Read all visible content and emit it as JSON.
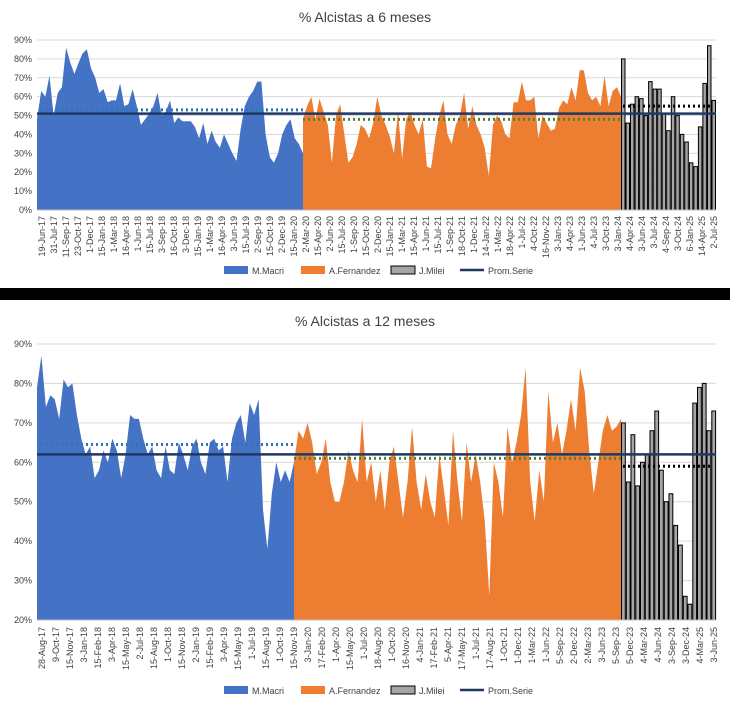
{
  "colors": {
    "macri": "#4472c4",
    "fernandez": "#ed7d31",
    "milei_fill": "#a5a5a5",
    "milei_stroke": "#000000",
    "prom": "#1f3864",
    "macri_dot": "#2e75b6",
    "fernandez_dot": "#548235",
    "milei_dot": "#000000"
  },
  "chart_data": [
    {
      "type": "area",
      "title": "% Alcistas a 6 meses",
      "ylim": [
        0,
        90
      ],
      "yticks": [
        "0%",
        "10%",
        "20%",
        "30%",
        "40%",
        "50%",
        "60%",
        "70%",
        "80%",
        "90%"
      ],
      "xticks": [
        "19-Jun-17",
        "31-Jul-17",
        "11-Sep-17",
        "23-Oct-17",
        "1-Dec-17",
        "15-Jan-18",
        "1-Mar-18",
        "16-Apr-18",
        "1-Jun-18",
        "15-Jul-18",
        "3-Sep-18",
        "16-Oct-18",
        "3-Dec-18",
        "15-Jan-19",
        "1-Mar-19",
        "16-Apr-19",
        "3-Jun-19",
        "15-Jul-19",
        "2-Sep-19",
        "15-Oct-19",
        "2-Dec-19",
        "15-Jan-20",
        "2-Mar-20",
        "15-Apr-20",
        "2-Jun-20",
        "15-Jul-20",
        "1-Sep-20",
        "15-Oct-20",
        "2-Dec-20",
        "15-Jan-21",
        "1-Mar-21",
        "15-Apr-21",
        "1-Jun-21",
        "15-Jul-21",
        "1-Sep-21",
        "18-Oct-21",
        "1-Dec-21",
        "14-Jan-22",
        "1-Mar-22",
        "18-Apr-22",
        "1-Jul-22",
        "4-Oct-22",
        "16-Nov-22",
        "3-Jan-23",
        "4-Apr-23",
        "1-Jun-23",
        "4-Jul-23",
        "3-Oct-23",
        "3-Jan-24",
        "4-Apr-24",
        "3-Jun-24",
        "3-Jul-24",
        "4-Sep-24",
        "3-Oct-24",
        "6-Jan-25",
        "14-Apr-25",
        "2-Jul-25"
      ],
      "legend": [
        "M.Macri",
        "A.Fernandez",
        "J.Milei",
        "Prom.Serie"
      ],
      "prom_serie": 51,
      "period_avgs": {
        "M.Macri": 53,
        "A.Fernandez": 48,
        "J.Milei": 55
      },
      "series": [
        {
          "name": "M.Macri",
          "values": [
            48,
            63,
            60,
            71,
            50,
            62,
            65,
            86,
            78,
            72,
            78,
            83,
            85,
            75,
            70,
            62,
            64,
            57,
            58,
            58,
            67,
            55,
            56,
            64,
            55,
            45,
            48,
            51,
            55,
            62,
            50,
            52,
            58,
            46,
            49,
            47,
            47,
            47,
            44,
            38,
            46,
            35,
            42,
            36,
            33,
            40,
            35,
            30,
            26,
            43,
            55,
            60,
            63,
            68,
            68,
            40,
            28,
            25,
            30,
            40,
            45,
            48,
            38,
            35,
            30
          ]
        },
        {
          "name": "A.Fernandez",
          "values": [
            48,
            55,
            60,
            48,
            59,
            52,
            45,
            25,
            50,
            56,
            40,
            25,
            28,
            35,
            45,
            43,
            38,
            46,
            60,
            50,
            45,
            39,
            30,
            52,
            27,
            48,
            52,
            45,
            40,
            48,
            23,
            22,
            38,
            50,
            58,
            40,
            35,
            45,
            50,
            62,
            43,
            55,
            45,
            40,
            33,
            18,
            45,
            50,
            47,
            40,
            38,
            57,
            57,
            68,
            58,
            58,
            60,
            38,
            50,
            46,
            42,
            43,
            54,
            58,
            56,
            65,
            58,
            74,
            74,
            62,
            58,
            60,
            55,
            71,
            55,
            63,
            65,
            60
          ]
        },
        {
          "name": "J.Milei",
          "values": [
            80,
            46,
            56,
            60,
            59,
            50,
            68,
            64,
            64,
            51,
            42,
            60,
            50,
            40,
            36,
            25,
            23,
            44,
            67,
            87,
            58
          ]
        }
      ]
    },
    {
      "type": "area",
      "title": "% Alcistas a 12 meses",
      "ylim": [
        20,
        90
      ],
      "yticks": [
        "20%",
        "30%",
        "40%",
        "50%",
        "60%",
        "70%",
        "80%",
        "90%"
      ],
      "xticks": [
        "28-Aug-17",
        "9-Oct-17",
        "15-Nov-17",
        "3-Jan-18",
        "15-Feb-18",
        "3-Apr-18",
        "15-May-18",
        "2-Jul-18",
        "15-Aug-18",
        "1-Oct-18",
        "15-Nov-18",
        "2-Jan-19",
        "15-Feb-19",
        "3-Apr-19",
        "15-May-19",
        "1-Jul-19",
        "15-Aug-19",
        "1-Oct-19",
        "15-Nov-19",
        "3-Jan-20",
        "17-Feb-20",
        "1-Apr-20",
        "15-May-20",
        "1-Jul-20",
        "18-Aug-20",
        "1-Oct-20",
        "16-Nov-20",
        "4-Jan-21",
        "17-Feb-21",
        "5-Apr-21",
        "17-May-21",
        "1-Jul-21",
        "17-Aug-21",
        "1-Oct-21",
        "1-Dec-21",
        "1-Mar-22",
        "1-Jun-22",
        "5-Sep-22",
        "2-Dec-22",
        "2-Mar-23",
        "3-Jun-23",
        "5-Sep-23",
        "5-Dec-23",
        "4-Mar-24",
        "4-Jun-24",
        "3-Sep-24",
        "3-Dec-24",
        "4-Mar-25",
        "3-Jun-25"
      ],
      "legend": [
        "M.Macri",
        "A.Fernandez",
        "J.Milei",
        "Prom.Serie"
      ],
      "prom_serie": 62,
      "period_avgs": {
        "M.Macri": 64.5,
        "A.Fernandez": 61,
        "J.Milei": 59
      },
      "series": [
        {
          "name": "M.Macri",
          "values": [
            79,
            87,
            74,
            77,
            76,
            71,
            81,
            79,
            80,
            72,
            66,
            62,
            64,
            56,
            58,
            63,
            60,
            66,
            63,
            56,
            62,
            72,
            71,
            71,
            66,
            62,
            64,
            58,
            56,
            64,
            58,
            57,
            65,
            62,
            58,
            64,
            66,
            60,
            57,
            65,
            66,
            63,
            64,
            55,
            66,
            70,
            72,
            65,
            75,
            72,
            76,
            48,
            38,
            52,
            60,
            55,
            58,
            55,
            60
          ]
        },
        {
          "name": "A.Fernandez",
          "values": [
            60,
            68,
            66,
            70,
            65,
            57,
            60,
            66,
            55,
            50,
            50,
            55,
            63,
            58,
            55,
            71,
            55,
            60,
            50,
            58,
            48,
            60,
            64,
            55,
            46,
            55,
            69,
            55,
            48,
            57,
            50,
            46,
            62,
            53,
            44,
            68,
            55,
            45,
            65,
            55,
            62,
            55,
            45,
            26,
            60,
            55,
            46,
            69,
            60,
            65,
            72,
            84,
            55,
            45,
            58,
            50,
            78,
            65,
            70,
            62,
            68,
            76,
            68,
            84,
            78,
            63,
            52,
            60,
            68,
            72,
            68,
            69,
            71
          ]
        },
        {
          "name": "J.Milei",
          "values": [
            70,
            55,
            67,
            54,
            60,
            62,
            68,
            73,
            58,
            50,
            52,
            44,
            39,
            26,
            24,
            75,
            79,
            80,
            68,
            73
          ]
        }
      ]
    }
  ]
}
